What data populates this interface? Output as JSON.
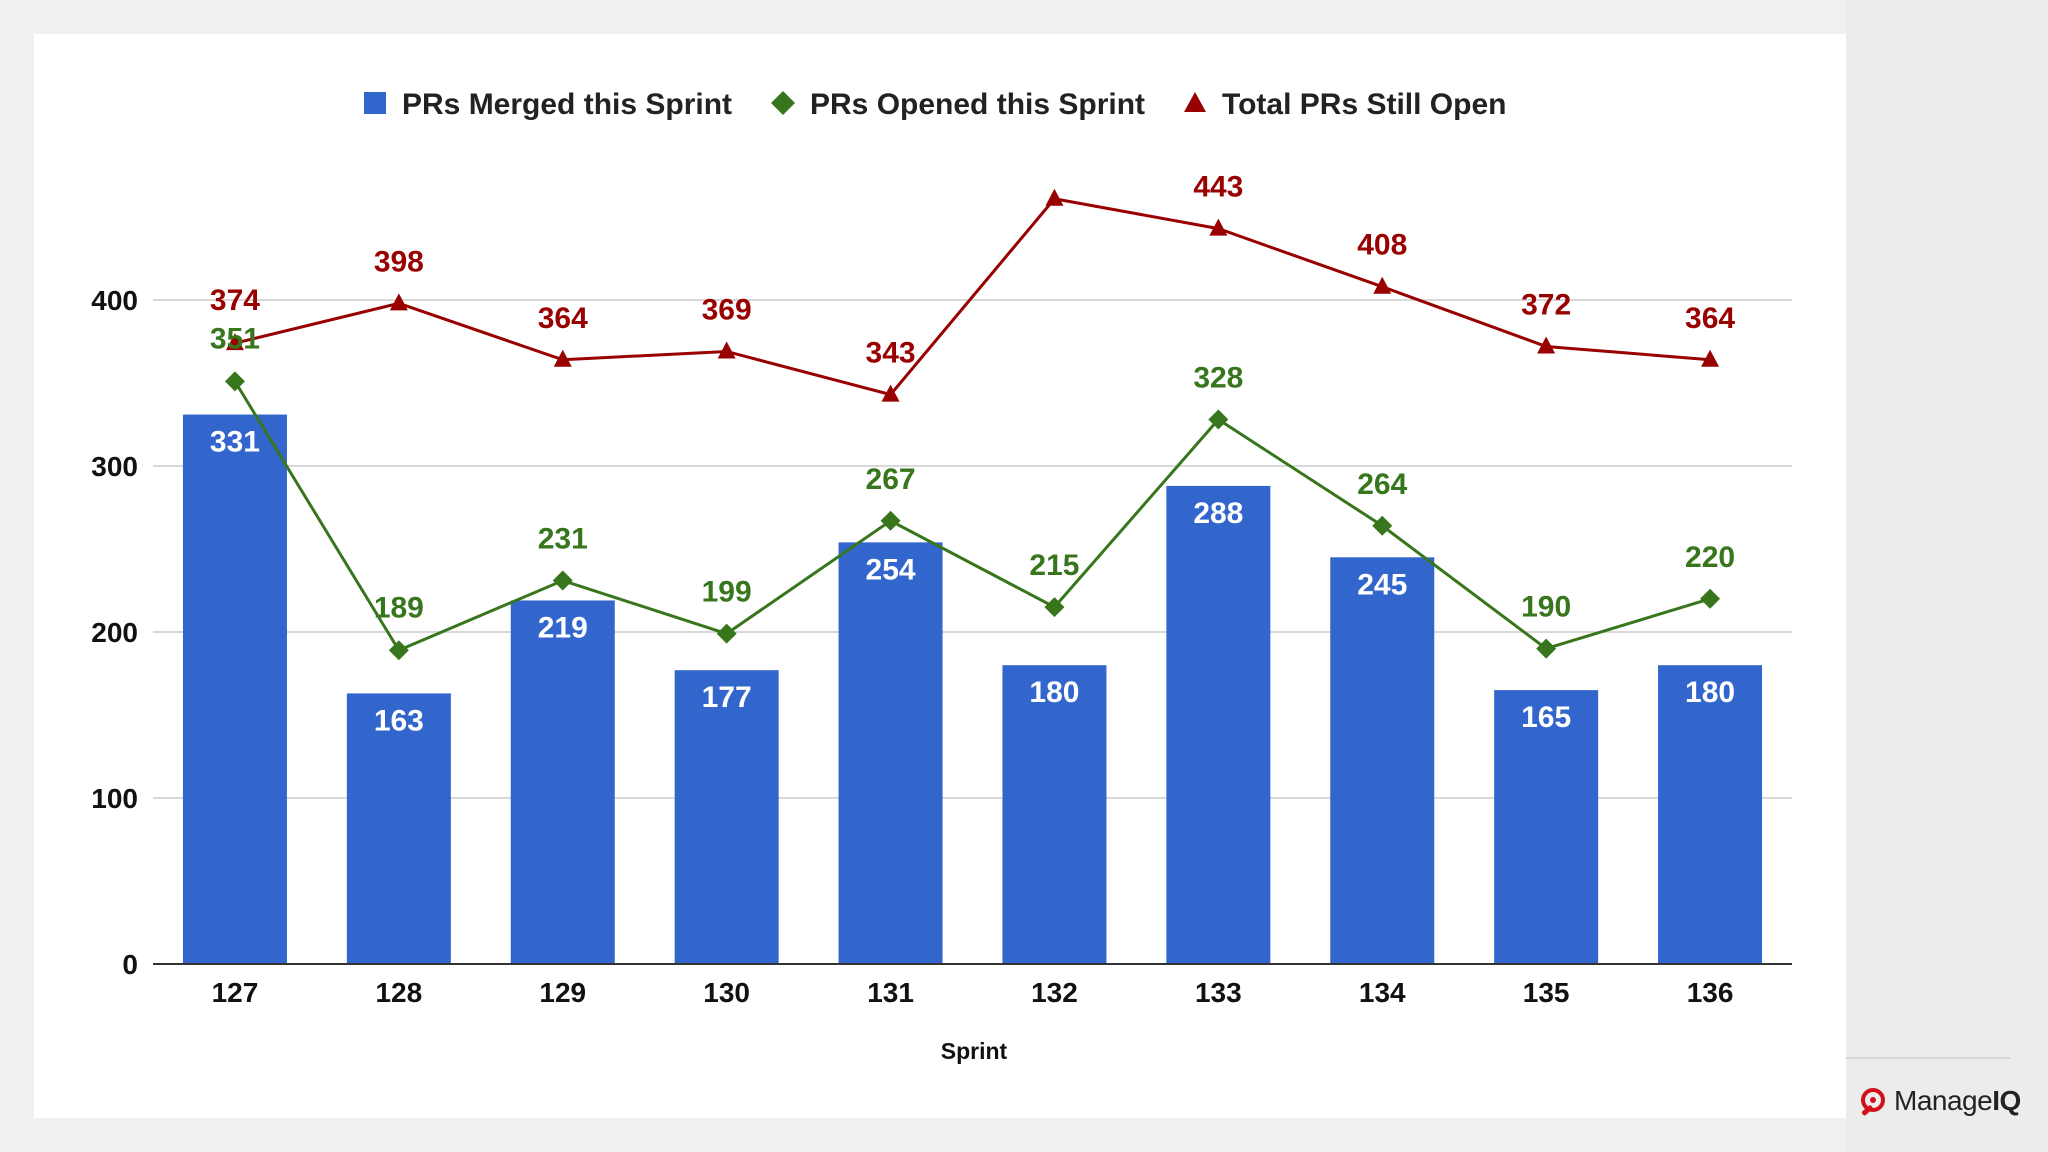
{
  "brand": {
    "name_prefix": "Manage",
    "name_suffix": "IQ",
    "logo_icon": "manageiq-logo-icon",
    "logo_color": "#d0111b"
  },
  "colors": {
    "merged": "#3366cc",
    "opened": "#38761d",
    "still_open": "#990000",
    "grid": "#cccccc",
    "axis": "#333333"
  },
  "chart_data": {
    "type": "bar",
    "title": "",
    "xlabel": "Sprint",
    "ylabel": "",
    "ylim": [
      0,
      470
    ],
    "yticks": [
      0,
      100,
      200,
      300,
      400
    ],
    "grid": true,
    "legend_position": "top",
    "categories": [
      "127",
      "128",
      "129",
      "130",
      "131",
      "132",
      "133",
      "134",
      "135",
      "136"
    ],
    "series": [
      {
        "name": "PRs Merged this Sprint",
        "type": "bar",
        "marker": "square",
        "color": "#3366cc",
        "values": [
          331,
          163,
          219,
          177,
          254,
          180,
          288,
          245,
          165,
          180
        ]
      },
      {
        "name": "PRs Opened this Sprint",
        "type": "line",
        "marker": "diamond",
        "color": "#38761d",
        "values": [
          351,
          189,
          231,
          199,
          267,
          215,
          328,
          264,
          190,
          220
        ],
        "labels": [
          "351",
          "189",
          "231",
          "199",
          "267",
          "215",
          "328",
          "264",
          "190",
          "220"
        ]
      },
      {
        "name": "Total PRs Still Open",
        "type": "line",
        "marker": "triangle",
        "color": "#990000",
        "values": [
          374,
          398,
          364,
          369,
          343,
          461,
          443,
          408,
          372,
          364
        ],
        "labels": [
          "374",
          "398",
          "364",
          "369",
          "343",
          "",
          "443",
          "408",
          "372",
          "364"
        ]
      }
    ]
  }
}
